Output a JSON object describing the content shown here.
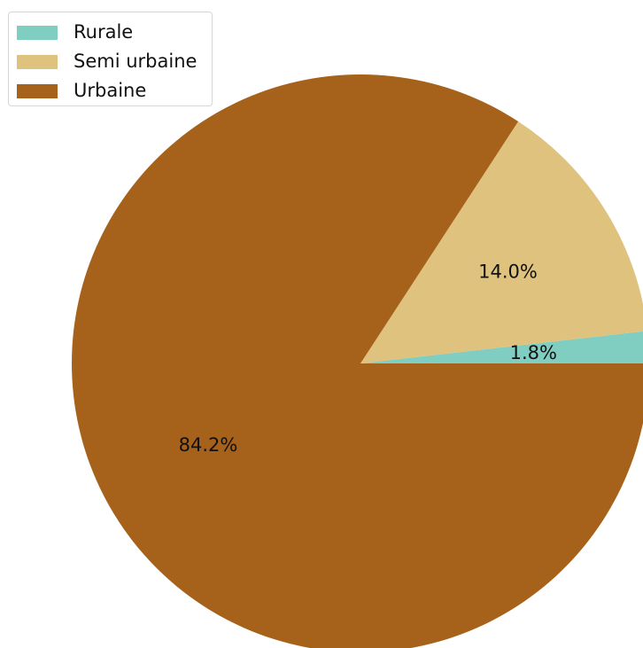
{
  "chart_data": {
    "type": "pie",
    "slices": [
      {
        "label": "Rurale",
        "value": 1.8,
        "display": "1.8%",
        "color": "#80cdc1"
      },
      {
        "label": "Semi urbaine",
        "value": 14.0,
        "display": "14.0%",
        "color": "#dfc27d"
      },
      {
        "label": "Urbaine",
        "value": 84.2,
        "display": "84.2%",
        "color": "#a6611a"
      }
    ],
    "start_angle_deg": 0,
    "direction": "counterclockwise",
    "legend_position": "top-left",
    "label_color": "#111111"
  }
}
